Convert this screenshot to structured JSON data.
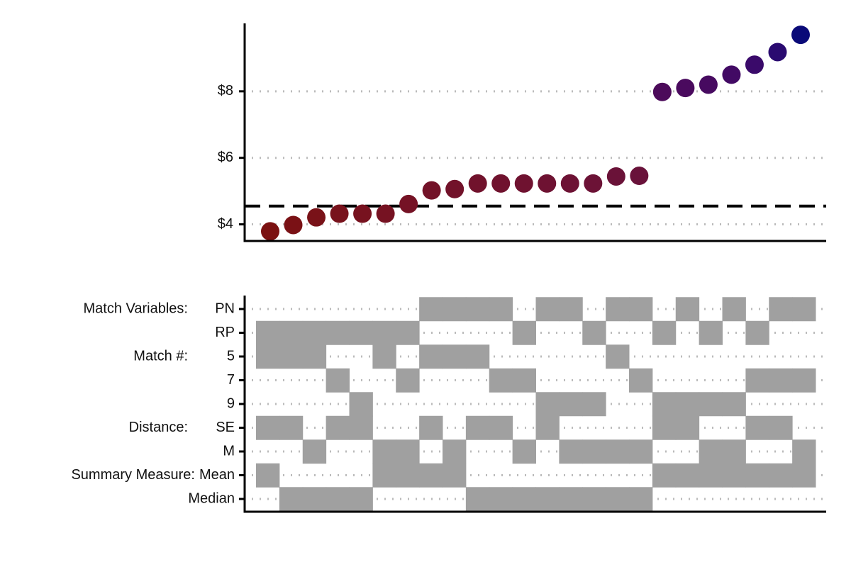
{
  "chart_data": [
    {
      "type": "scatter",
      "values": [
        3.79,
        3.98,
        4.21,
        4.32,
        4.32,
        4.32,
        4.61,
        5.02,
        5.06,
        5.23,
        5.23,
        5.23,
        5.23,
        5.23,
        5.23,
        5.44,
        5.46,
        7.98,
        8.1,
        8.2,
        8.5,
        8.8,
        9.18,
        9.7
      ],
      "colors": [
        "#7b1111",
        "#7a1115",
        "#791218",
        "#78121c",
        "#77121f",
        "#761222",
        "#751225",
        "#731228",
        "#72122a",
        "#71122c",
        "#70122e",
        "#6f1230",
        "#6e1232",
        "#6d1234",
        "#6c1236",
        "#6a1238",
        "#69123a",
        "#4c0a5a",
        "#4a0a5e",
        "#470a60",
        "#420a64",
        "#3a0a6a",
        "#2a0a70",
        "#0a0a78"
      ],
      "ylim": [
        3.5,
        10
      ],
      "yticks": [
        {
          "value": 4,
          "label": "$4"
        },
        {
          "value": 6,
          "label": "$6"
        },
        {
          "value": 8,
          "label": "$8"
        }
      ],
      "reference_line": 4.55,
      "grid": true
    },
    {
      "type": "indicator_grid",
      "color": "#a0a0a0",
      "rows": [
        {
          "group": "Match Variables:",
          "label": "PN",
          "values": [
            0,
            0,
            0,
            0,
            0,
            0,
            0,
            1,
            1,
            1,
            1,
            0,
            1,
            1,
            0,
            1,
            1,
            0,
            1,
            0,
            1,
            0,
            1,
            1
          ]
        },
        {
          "label": "RP",
          "values": [
            1,
            1,
            1,
            1,
            1,
            1,
            1,
            0,
            0,
            0,
            0,
            1,
            0,
            0,
            1,
            0,
            0,
            1,
            0,
            1,
            0,
            1,
            0,
            0
          ]
        },
        {
          "group": "Match #:",
          "label": "5",
          "values": [
            1,
            1,
            1,
            0,
            0,
            1,
            0,
            1,
            1,
            1,
            0,
            0,
            0,
            0,
            0,
            1,
            0,
            0,
            0,
            0,
            0,
            0,
            0,
            0
          ]
        },
        {
          "label": "7",
          "values": [
            0,
            0,
            0,
            1,
            0,
            0,
            1,
            0,
            0,
            0,
            1,
            1,
            0,
            0,
            0,
            0,
            1,
            0,
            0,
            0,
            0,
            1,
            1,
            1
          ]
        },
        {
          "label": "9",
          "values": [
            0,
            0,
            0,
            0,
            1,
            0,
            0,
            0,
            0,
            0,
            0,
            0,
            1,
            1,
            1,
            0,
            0,
            1,
            1,
            1,
            1,
            0,
            0,
            0
          ]
        },
        {
          "group": "Distance:",
          "label": "SE",
          "values": [
            1,
            1,
            0,
            1,
            1,
            0,
            0,
            1,
            0,
            1,
            1,
            0,
            1,
            0,
            0,
            0,
            0,
            1,
            1,
            0,
            0,
            1,
            1,
            0
          ]
        },
        {
          "label": "M",
          "values": [
            0,
            0,
            1,
            0,
            0,
            1,
            1,
            0,
            1,
            0,
            0,
            1,
            0,
            1,
            1,
            1,
            1,
            0,
            0,
            1,
            1,
            0,
            0,
            1
          ]
        },
        {
          "group": "Summary Measure:",
          "label": "Mean",
          "values": [
            1,
            0,
            0,
            0,
            0,
            1,
            1,
            1,
            1,
            0,
            0,
            0,
            0,
            0,
            0,
            0,
            0,
            1,
            1,
            1,
            1,
            1,
            1,
            1
          ]
        },
        {
          "label": "Median",
          "values": [
            0,
            1,
            1,
            1,
            1,
            0,
            0,
            0,
            0,
            1,
            1,
            1,
            1,
            1,
            1,
            1,
            1,
            0,
            0,
            0,
            0,
            0,
            0,
            0
          ]
        }
      ]
    }
  ]
}
